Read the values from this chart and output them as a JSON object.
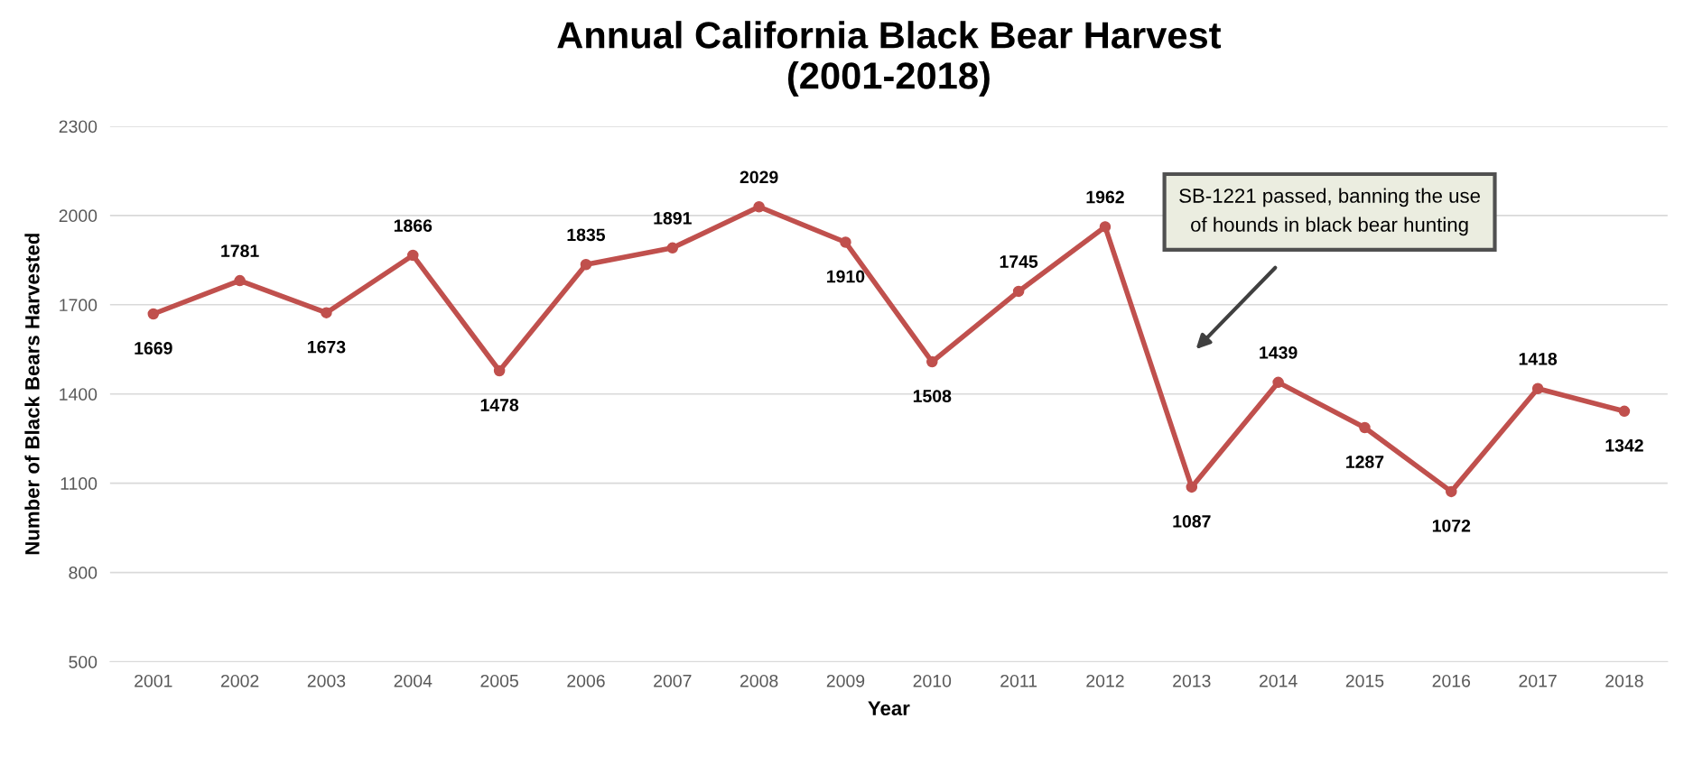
{
  "chart_data": {
    "type": "line",
    "title": "Annual California Black Bear Harvest\n(2001-2018)",
    "xlabel": "Year",
    "ylabel": "Number of Black Bears Harvested",
    "categories": [
      "2001",
      "2002",
      "2003",
      "2004",
      "2005",
      "2006",
      "2007",
      "2008",
      "2009",
      "2010",
      "2011",
      "2012",
      "2013",
      "2014",
      "2015",
      "2016",
      "2017",
      "2018"
    ],
    "series": [
      {
        "color": "#c0504d",
        "values": [
          1669,
          1781,
          1673,
          1866,
          1478,
          1835,
          1891,
          2029,
          1910,
          1508,
          1745,
          1962,
          1087,
          1439,
          1287,
          1072,
          1418,
          1342
        ]
      }
    ],
    "ylim": [
      500,
      2300
    ],
    "yticks": [
      500,
      800,
      1100,
      1400,
      1700,
      2000,
      2300
    ],
    "grid": "y",
    "marker": "circle",
    "line_style": "solid",
    "data_labels": true,
    "legend": false,
    "annotations": [
      "SB-1221 passed, banning the use\nof hounds in black bear hunting"
    ]
  }
}
